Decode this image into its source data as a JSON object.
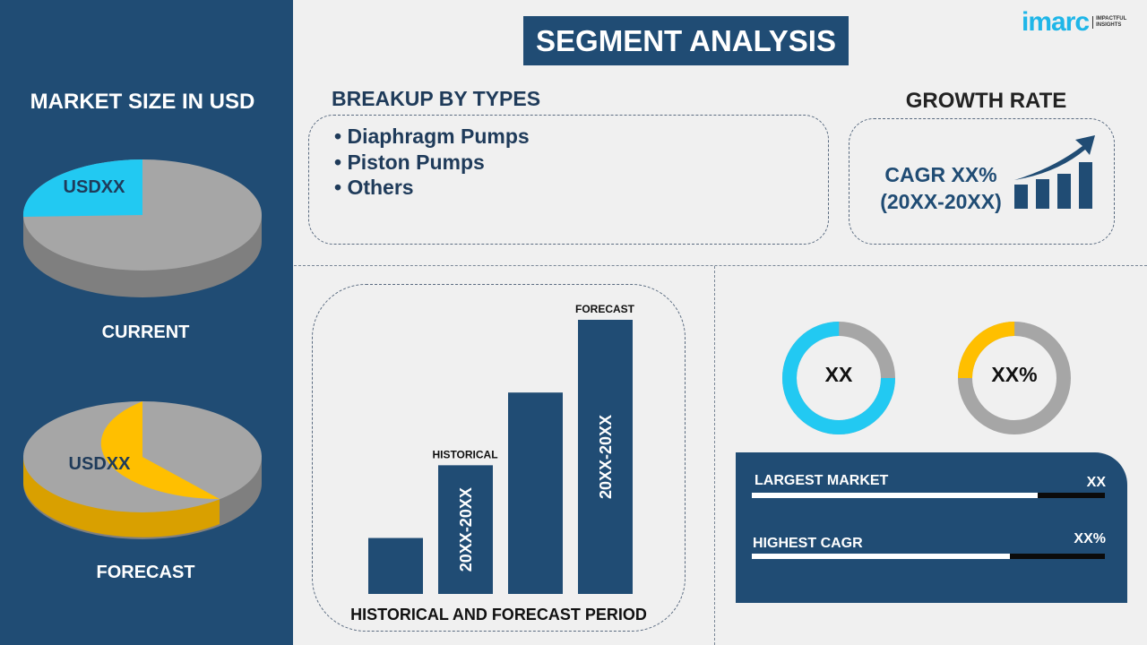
{
  "title": "SEGMENT ANALYSIS",
  "logo": {
    "text": "imarc",
    "tagline": "IMPACTFUL INSIGHTS",
    "color": "#1fb6e8"
  },
  "colors": {
    "navy": "#204c74",
    "cyan": "#22c9f2",
    "yellow": "#ffbf00",
    "gray": "#a6a6a6"
  },
  "left": {
    "heading": "MARKET SIZE IN USD",
    "current": {
      "label": "CURRENT",
      "value": "USDXX",
      "highlight_share": 0.25
    },
    "forecast": {
      "label": "FORECAST",
      "value": "USDXX",
      "highlight_share": 0.6
    }
  },
  "breakup": {
    "heading": "BREAKUP BY TYPES",
    "items": [
      "Diaphragm Pumps",
      "Piston Pumps",
      "Others"
    ]
  },
  "growth": {
    "heading": "GROWTH RATE",
    "cagr": "CAGR XX%",
    "period": "(20XX-20XX)",
    "icon": "growth-chart-icon"
  },
  "chart_data": {
    "type": "bar",
    "xlabel": "HISTORICAL AND FORECAST PERIOD",
    "values": [
      1,
      2.3,
      3.6,
      4.9
    ],
    "bar_labels": [
      "",
      "20XX-20XX",
      "",
      "20XX-20XX"
    ],
    "annotations": [
      "",
      "HISTORICAL",
      "",
      "FORECAST"
    ]
  },
  "donuts": [
    {
      "label": "XX",
      "share": 0.75,
      "color": "#22c9f2"
    },
    {
      "label": "XX%",
      "share": 0.25,
      "color": "#ffbf00"
    }
  ],
  "kpi": [
    {
      "label": "LARGEST MARKET",
      "value": "XX",
      "fill": 0.81
    },
    {
      "label": "HIGHEST CAGR",
      "value": "XX%",
      "fill": 0.73
    }
  ]
}
